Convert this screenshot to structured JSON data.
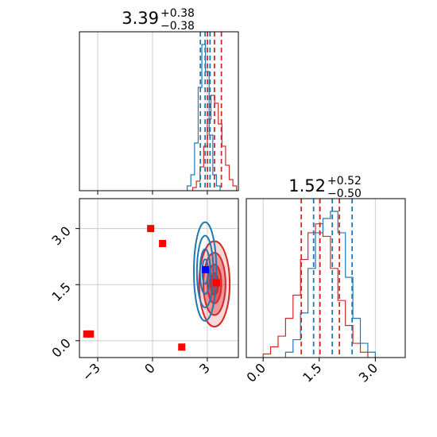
{
  "chart_data": [
    {
      "panel": "top-left",
      "type": "histogram",
      "title": {
        "value": "3.39",
        "plus": "+0.38",
        "minus": "−0.38"
      },
      "xlim": [
        -4,
        4.7
      ],
      "grid": true,
      "series": [
        {
          "color": "#d62728",
          "bins_x": [
            2.3,
            2.5,
            2.7,
            2.9,
            3.1,
            3.3,
            3.5,
            3.7,
            3.9,
            4.1,
            4.3,
            4.5
          ],
          "counts": [
            0.02,
            0.06,
            0.15,
            0.28,
            0.45,
            0.6,
            0.55,
            0.42,
            0.28,
            0.16,
            0.07,
            0.03
          ],
          "quantile_lines": [
            3.01,
            3.39,
            3.77
          ]
        },
        {
          "color": "#1f77b4",
          "bins_x": [
            2.0,
            2.2,
            2.4,
            2.6,
            2.8,
            3.0,
            3.2,
            3.4,
            3.6
          ],
          "counts": [
            0.03,
            0.1,
            0.3,
            0.65,
            0.92,
            0.75,
            0.35,
            0.1,
            0.03
          ],
          "quantile_lines": [
            2.62,
            2.88,
            3.15
          ]
        }
      ]
    },
    {
      "panel": "bottom-left",
      "type": "scatter",
      "xlim": [
        -4,
        4.7
      ],
      "ylim": [
        -0.45,
        3.8
      ],
      "xticks": [
        "−3",
        "0",
        "3"
      ],
      "xtick_values": [
        -3,
        0,
        3
      ],
      "yticks": [
        "0.0",
        "1.5",
        "3.0"
      ],
      "ytick_values": [
        0.0,
        1.5,
        3.0
      ],
      "grid": true,
      "red_contours": {
        "color": "#d62728",
        "center": [
          3.39,
          1.52
        ],
        "std": [
          0.38,
          0.52
        ]
      },
      "blue_contours": {
        "color": "#1f77b4",
        "center": [
          2.88,
          1.85
        ],
        "std": [
          0.28,
          0.6
        ]
      },
      "red_points": [
        [
          -3.6,
          0.18
        ],
        [
          -3.4,
          0.18
        ],
        [
          -0.1,
          3.0
        ],
        [
          0.55,
          2.6
        ],
        [
          1.6,
          -0.17
        ],
        [
          3.5,
          1.55
        ]
      ],
      "blue_points": [
        [
          2.9,
          1.9
        ]
      ]
    },
    {
      "panel": "bottom-right",
      "type": "histogram",
      "title": {
        "value": "1.52",
        "plus": "+0.52",
        "minus": "−0.50"
      },
      "xlim": [
        -0.45,
        3.8
      ],
      "xticks": [
        "0.0",
        "1.5",
        "3.0"
      ],
      "xtick_values": [
        0.0,
        1.5,
        3.0
      ],
      "grid": true,
      "series": [
        {
          "color": "#d62728",
          "bins_x": [
            0.1,
            0.3,
            0.5,
            0.7,
            0.9,
            1.1,
            1.3,
            1.5,
            1.7,
            1.9,
            2.1,
            2.3,
            2.5,
            2.7
          ],
          "counts": [
            0.02,
            0.06,
            0.12,
            0.22,
            0.35,
            0.55,
            0.7,
            0.75,
            0.68,
            0.5,
            0.32,
            0.18,
            0.08,
            0.03
          ],
          "quantile_lines": [
            1.02,
            1.52,
            2.04
          ]
        },
        {
          "color": "#1f77b4",
          "bins_x": [
            0.7,
            0.9,
            1.1,
            1.3,
            1.5,
            1.7,
            1.9,
            2.1,
            2.3,
            2.5,
            2.7,
            2.9
          ],
          "counts": [
            0.03,
            0.1,
            0.25,
            0.5,
            0.7,
            0.78,
            0.82,
            0.7,
            0.45,
            0.22,
            0.08,
            0.03
          ],
          "quantile_lines": [
            1.35,
            1.85,
            2.38
          ]
        }
      ]
    }
  ]
}
